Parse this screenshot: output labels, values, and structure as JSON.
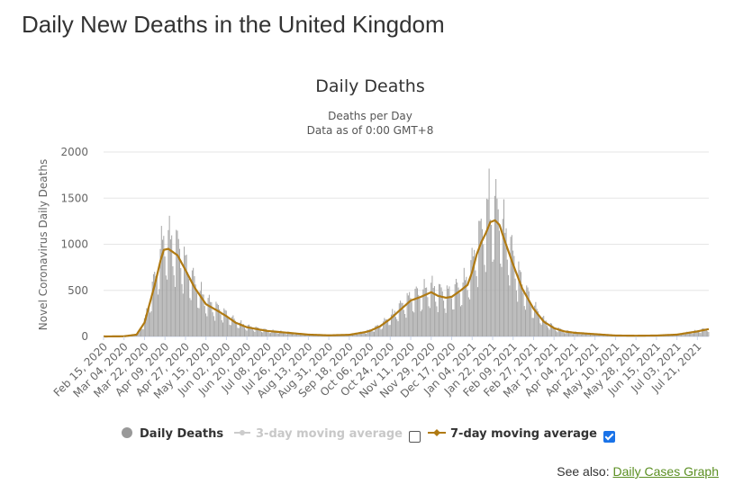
{
  "page": {
    "title": "Daily New Deaths in the United Kingdom",
    "see_also_prefix": "See also:",
    "see_also_link": "Daily Cases Graph"
  },
  "colors": {
    "bars": "#a6a6a6",
    "avg7": "#b07a12",
    "avg3": "#cccccc",
    "grid": "#e6e6e6",
    "checkbox_on": "#1a73e8",
    "link": "#5b8f22"
  },
  "chart_data": {
    "type": "bar",
    "title": "Daily Deaths",
    "subtitle_line1": "Deaths per Day",
    "subtitle_line2": "Data as of 0:00 GMT+8",
    "ylabel": "Novel Coronavirus Daily Deaths",
    "xlabel": "",
    "ylim": [
      0,
      2000
    ],
    "yticks": [
      0,
      500,
      1000,
      1500,
      2000
    ],
    "x_start": "Feb 15, 2020",
    "x_end": "Jul 31, 2021",
    "x_tick_labels": [
      "Feb 15, 2020",
      "Mar 04, 2020",
      "Mar 22, 2020",
      "Apr 09, 2020",
      "Apr 27, 2020",
      "May 15, 2020",
      "Jun 02, 2020",
      "Jun 20, 2020",
      "Jul 08, 2020",
      "Jul 26, 2020",
      "Aug 13, 2020",
      "Aug 31, 2020",
      "Sep 18, 2020",
      "Oct 06, 2020",
      "Oct 24, 2020",
      "Nov 11, 2020",
      "Nov 29, 2020",
      "Dec 17, 2020",
      "Jan 04, 2021",
      "Jan 22, 2021",
      "Feb 09, 2021",
      "Feb 27, 2021",
      "Mar 17, 2021",
      "Apr 04, 2021",
      "Apr 22, 2021",
      "May 10, 2021",
      "May 28, 2021",
      "Jun 15, 2021",
      "Jul 03, 2021",
      "Jul 21, 2021"
    ],
    "series": [
      {
        "name": "Daily Deaths",
        "kind": "bar",
        "visible": true
      },
      {
        "name": "3-day moving average",
        "kind": "line",
        "visible": false
      },
      {
        "name": "7-day moving average",
        "kind": "line",
        "visible": true
      }
    ],
    "avg7_keypoints": [
      [
        "Feb 15, 2020",
        0
      ],
      [
        "Mar 04, 2020",
        2
      ],
      [
        "Mar 15, 2020",
        20
      ],
      [
        "Mar 22, 2020",
        150
      ],
      [
        "Mar 31, 2020",
        560
      ],
      [
        "Apr 05, 2020",
        820
      ],
      [
        "Apr 08, 2020",
        940
      ],
      [
        "Apr 12, 2020",
        950
      ],
      [
        "Apr 20, 2020",
        880
      ],
      [
        "Apr 27, 2020",
        720
      ],
      [
        "May 05, 2020",
        530
      ],
      [
        "May 15, 2020",
        350
      ],
      [
        "May 25, 2020",
        280
      ],
      [
        "Jun 02, 2020",
        220
      ],
      [
        "Jun 10, 2020",
        150
      ],
      [
        "Jun 20, 2020",
        100
      ],
      [
        "Jul 01, 2020",
        75
      ],
      [
        "Jul 08, 2020",
        60
      ],
      [
        "Jul 26, 2020",
        40
      ],
      [
        "Aug 13, 2020",
        20
      ],
      [
        "Aug 31, 2020",
        12
      ],
      [
        "Sep 18, 2020",
        18
      ],
      [
        "Oct 01, 2020",
        45
      ],
      [
        "Oct 06, 2020",
        60
      ],
      [
        "Oct 15, 2020",
        110
      ],
      [
        "Oct 24, 2020",
        190
      ],
      [
        "Nov 01, 2020",
        280
      ],
      [
        "Nov 11, 2020",
        390
      ],
      [
        "Nov 20, 2020",
        430
      ],
      [
        "Nov 29, 2020",
        480
      ],
      [
        "Dec 05, 2020",
        440
      ],
      [
        "Dec 12, 2020",
        420
      ],
      [
        "Dec 17, 2020",
        430
      ],
      [
        "Dec 25, 2020",
        500
      ],
      [
        "Dec 31, 2020",
        560
      ],
      [
        "Jan 04, 2021",
        700
      ],
      [
        "Jan 08, 2021",
        890
      ],
      [
        "Jan 12, 2021",
        1020
      ],
      [
        "Jan 16, 2021",
        1120
      ],
      [
        "Jan 20, 2021",
        1240
      ],
      [
        "Jan 24, 2021",
        1260
      ],
      [
        "Jan 28, 2021",
        1210
      ],
      [
        "Feb 01, 2021",
        1060
      ],
      [
        "Feb 09, 2021",
        780
      ],
      [
        "Feb 17, 2021",
        520
      ],
      [
        "Feb 27, 2021",
        300
      ],
      [
        "Mar 08, 2021",
        160
      ],
      [
        "Mar 17, 2021",
        90
      ],
      [
        "Mar 26, 2021",
        55
      ],
      [
        "Apr 04, 2021",
        40
      ],
      [
        "Apr 22, 2021",
        25
      ],
      [
        "May 10, 2021",
        10
      ],
      [
        "May 28, 2021",
        8
      ],
      [
        "Jun 15, 2021",
        10
      ],
      [
        "Jul 03, 2021",
        20
      ],
      [
        "Jul 21, 2021",
        55
      ],
      [
        "Jul 31, 2021",
        80
      ]
    ],
    "daily_peak_value": 1820,
    "daily_peak_date": "Jan 19, 2021",
    "legend": {
      "daily": "Daily Deaths",
      "avg3": "3-day moving average",
      "avg7": "7-day moving average",
      "avg3_checked": false,
      "avg7_checked": true
    }
  }
}
